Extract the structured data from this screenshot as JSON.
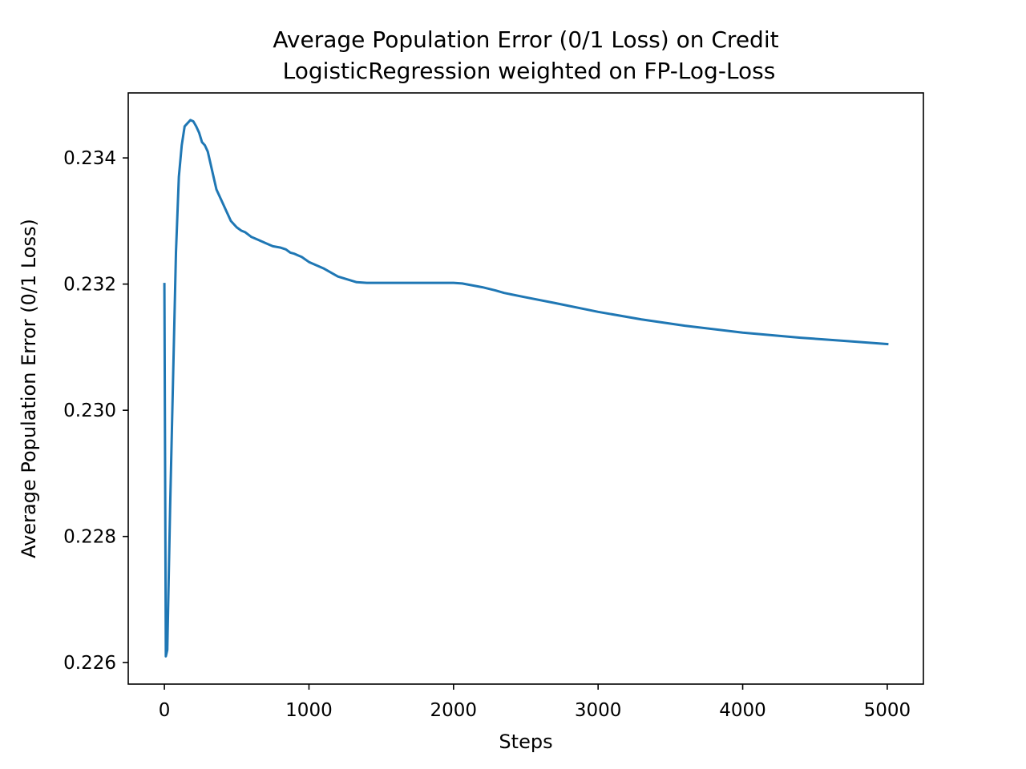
{
  "chart_data": {
    "type": "line",
    "title": "Average Population Error (0/1 Loss) on Credit",
    "subtitle": "LogisticRegression weighted on FP-Log-Loss",
    "xlabel": "Steps",
    "ylabel": "Average Population Error (0/1 Loss)",
    "xlim": [
      -250,
      5250
    ],
    "ylim": [
      0.22566,
      0.23503
    ],
    "xticks": [
      0,
      1000,
      2000,
      3000,
      4000,
      5000
    ],
    "xtick_labels": [
      "0",
      "1000",
      "2000",
      "3000",
      "4000",
      "5000"
    ],
    "yticks": [
      0.226,
      0.228,
      0.23,
      0.232,
      0.234
    ],
    "ytick_labels": [
      "0.226",
      "0.228",
      "0.230",
      "0.232",
      "0.234"
    ],
    "grid": false,
    "legend": "none",
    "series": [
      {
        "color": "#1f77b4",
        "x": [
          0,
          10,
          20,
          40,
          60,
          80,
          100,
          120,
          140,
          160,
          180,
          200,
          220,
          240,
          260,
          280,
          300,
          320,
          340,
          360,
          380,
          400,
          430,
          460,
          500,
          530,
          560,
          600,
          650,
          700,
          750,
          800,
          840,
          870,
          900,
          930,
          950,
          1000,
          1100,
          1200,
          1330,
          1400,
          1600,
          1800,
          2000,
          2060,
          2200,
          2290,
          2350,
          2500,
          2700,
          3000,
          3300,
          3600,
          4000,
          4400,
          4700,
          5000
        ],
        "y": [
          0.232,
          0.2261,
          0.2262,
          0.2285,
          0.2305,
          0.2325,
          0.2337,
          0.2342,
          0.2345,
          0.23455,
          0.2346,
          0.23458,
          0.2345,
          0.2344,
          0.23425,
          0.2342,
          0.2341,
          0.2339,
          0.2337,
          0.2335,
          0.2334,
          0.2333,
          0.23315,
          0.233,
          0.2329,
          0.23285,
          0.23282,
          0.23275,
          0.2327,
          0.23265,
          0.2326,
          0.23258,
          0.23255,
          0.2325,
          0.23248,
          0.23245,
          0.23243,
          0.23235,
          0.23225,
          0.23212,
          0.23203,
          0.23202,
          0.23202,
          0.23202,
          0.23202,
          0.23201,
          0.23195,
          0.2319,
          0.23186,
          0.23179,
          0.2317,
          0.23156,
          0.23144,
          0.23134,
          0.23123,
          0.23115,
          0.2311,
          0.23105
        ]
      }
    ]
  }
}
